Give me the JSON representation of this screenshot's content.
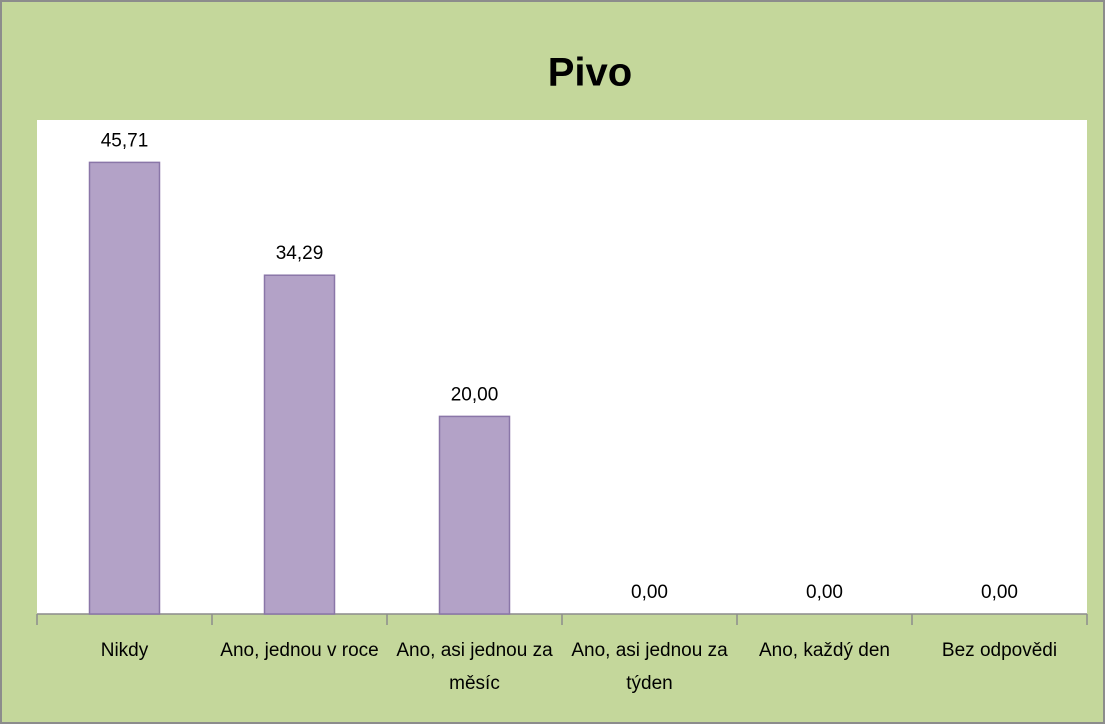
{
  "chart_data": {
    "type": "bar",
    "title": "Pivo",
    "categories": [
      "Nikdy",
      "Ano, jednou v roce",
      "Ano, asi jednou za měsíc",
      "Ano, asi jednou za týden",
      "Ano, každý den",
      "Bez odpovědi"
    ],
    "values": [
      45.71,
      34.29,
      20,
      0,
      0,
      0
    ],
    "value_labels": [
      "45,71",
      "34,29",
      "20,00",
      "0,00",
      "0,00",
      "0,00"
    ],
    "color": "#b3a2c7",
    "ylim": [
      0,
      50
    ]
  }
}
